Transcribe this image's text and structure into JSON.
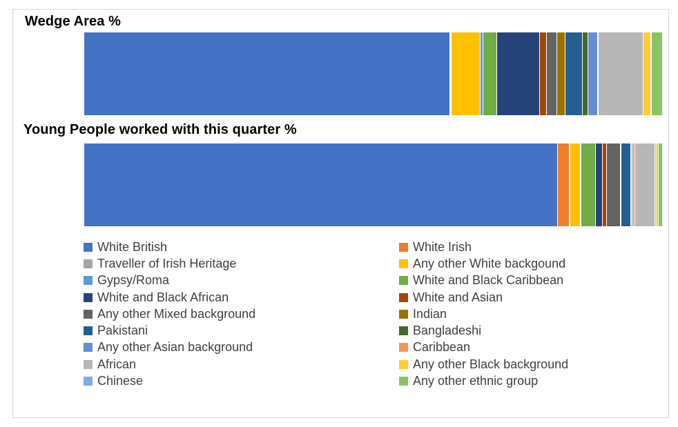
{
  "chart_data": {
    "type": "bar",
    "orientation": "horizontal",
    "stacked": true,
    "normalized": true,
    "categories": [
      "White British",
      "White Irish",
      "Traveller of Irish Heritage",
      "Any other White backgound",
      "Gypsy/Roma",
      "White and Black Caribbean",
      "White and Black African",
      "White and Asian",
      "Any other Mixed background",
      "Indian",
      "Pakistani",
      "Bangladeshi",
      "Any other Asian background",
      "Caribbean",
      "African",
      "Any other Black background",
      "Chinese",
      "Any other ethnic group"
    ],
    "colors": [
      "#4472C4",
      "#ED7D31",
      "#A5A5A5",
      "#FFC000",
      "#5B9BD5",
      "#70AD47",
      "#264478",
      "#9E480E",
      "#636363",
      "#997300",
      "#255E91",
      "#43682B",
      "#698ED0",
      "#F1975A",
      "#B7B7B7",
      "#FFCD33",
      "#7CAFDD",
      "#8CC168"
    ],
    "series": [
      {
        "name": "Wedge Area %",
        "values": [
          63.0,
          0.1,
          0.1,
          5.0,
          0.5,
          2.4,
          7.4,
          1.2,
          1.8,
          1.4,
          2.9,
          1.0,
          1.7,
          0.1,
          7.7,
          1.3,
          0.1,
          1.8
        ]
      },
      {
        "name": "Young People worked with this quarter %",
        "values": [
          82.0,
          2.0,
          0.1,
          1.8,
          0.2,
          2.4,
          1.3,
          0.7,
          2.4,
          0.1,
          1.6,
          0.1,
          0.3,
          0.3,
          3.5,
          0.4,
          0.2,
          0.6
        ]
      }
    ]
  }
}
